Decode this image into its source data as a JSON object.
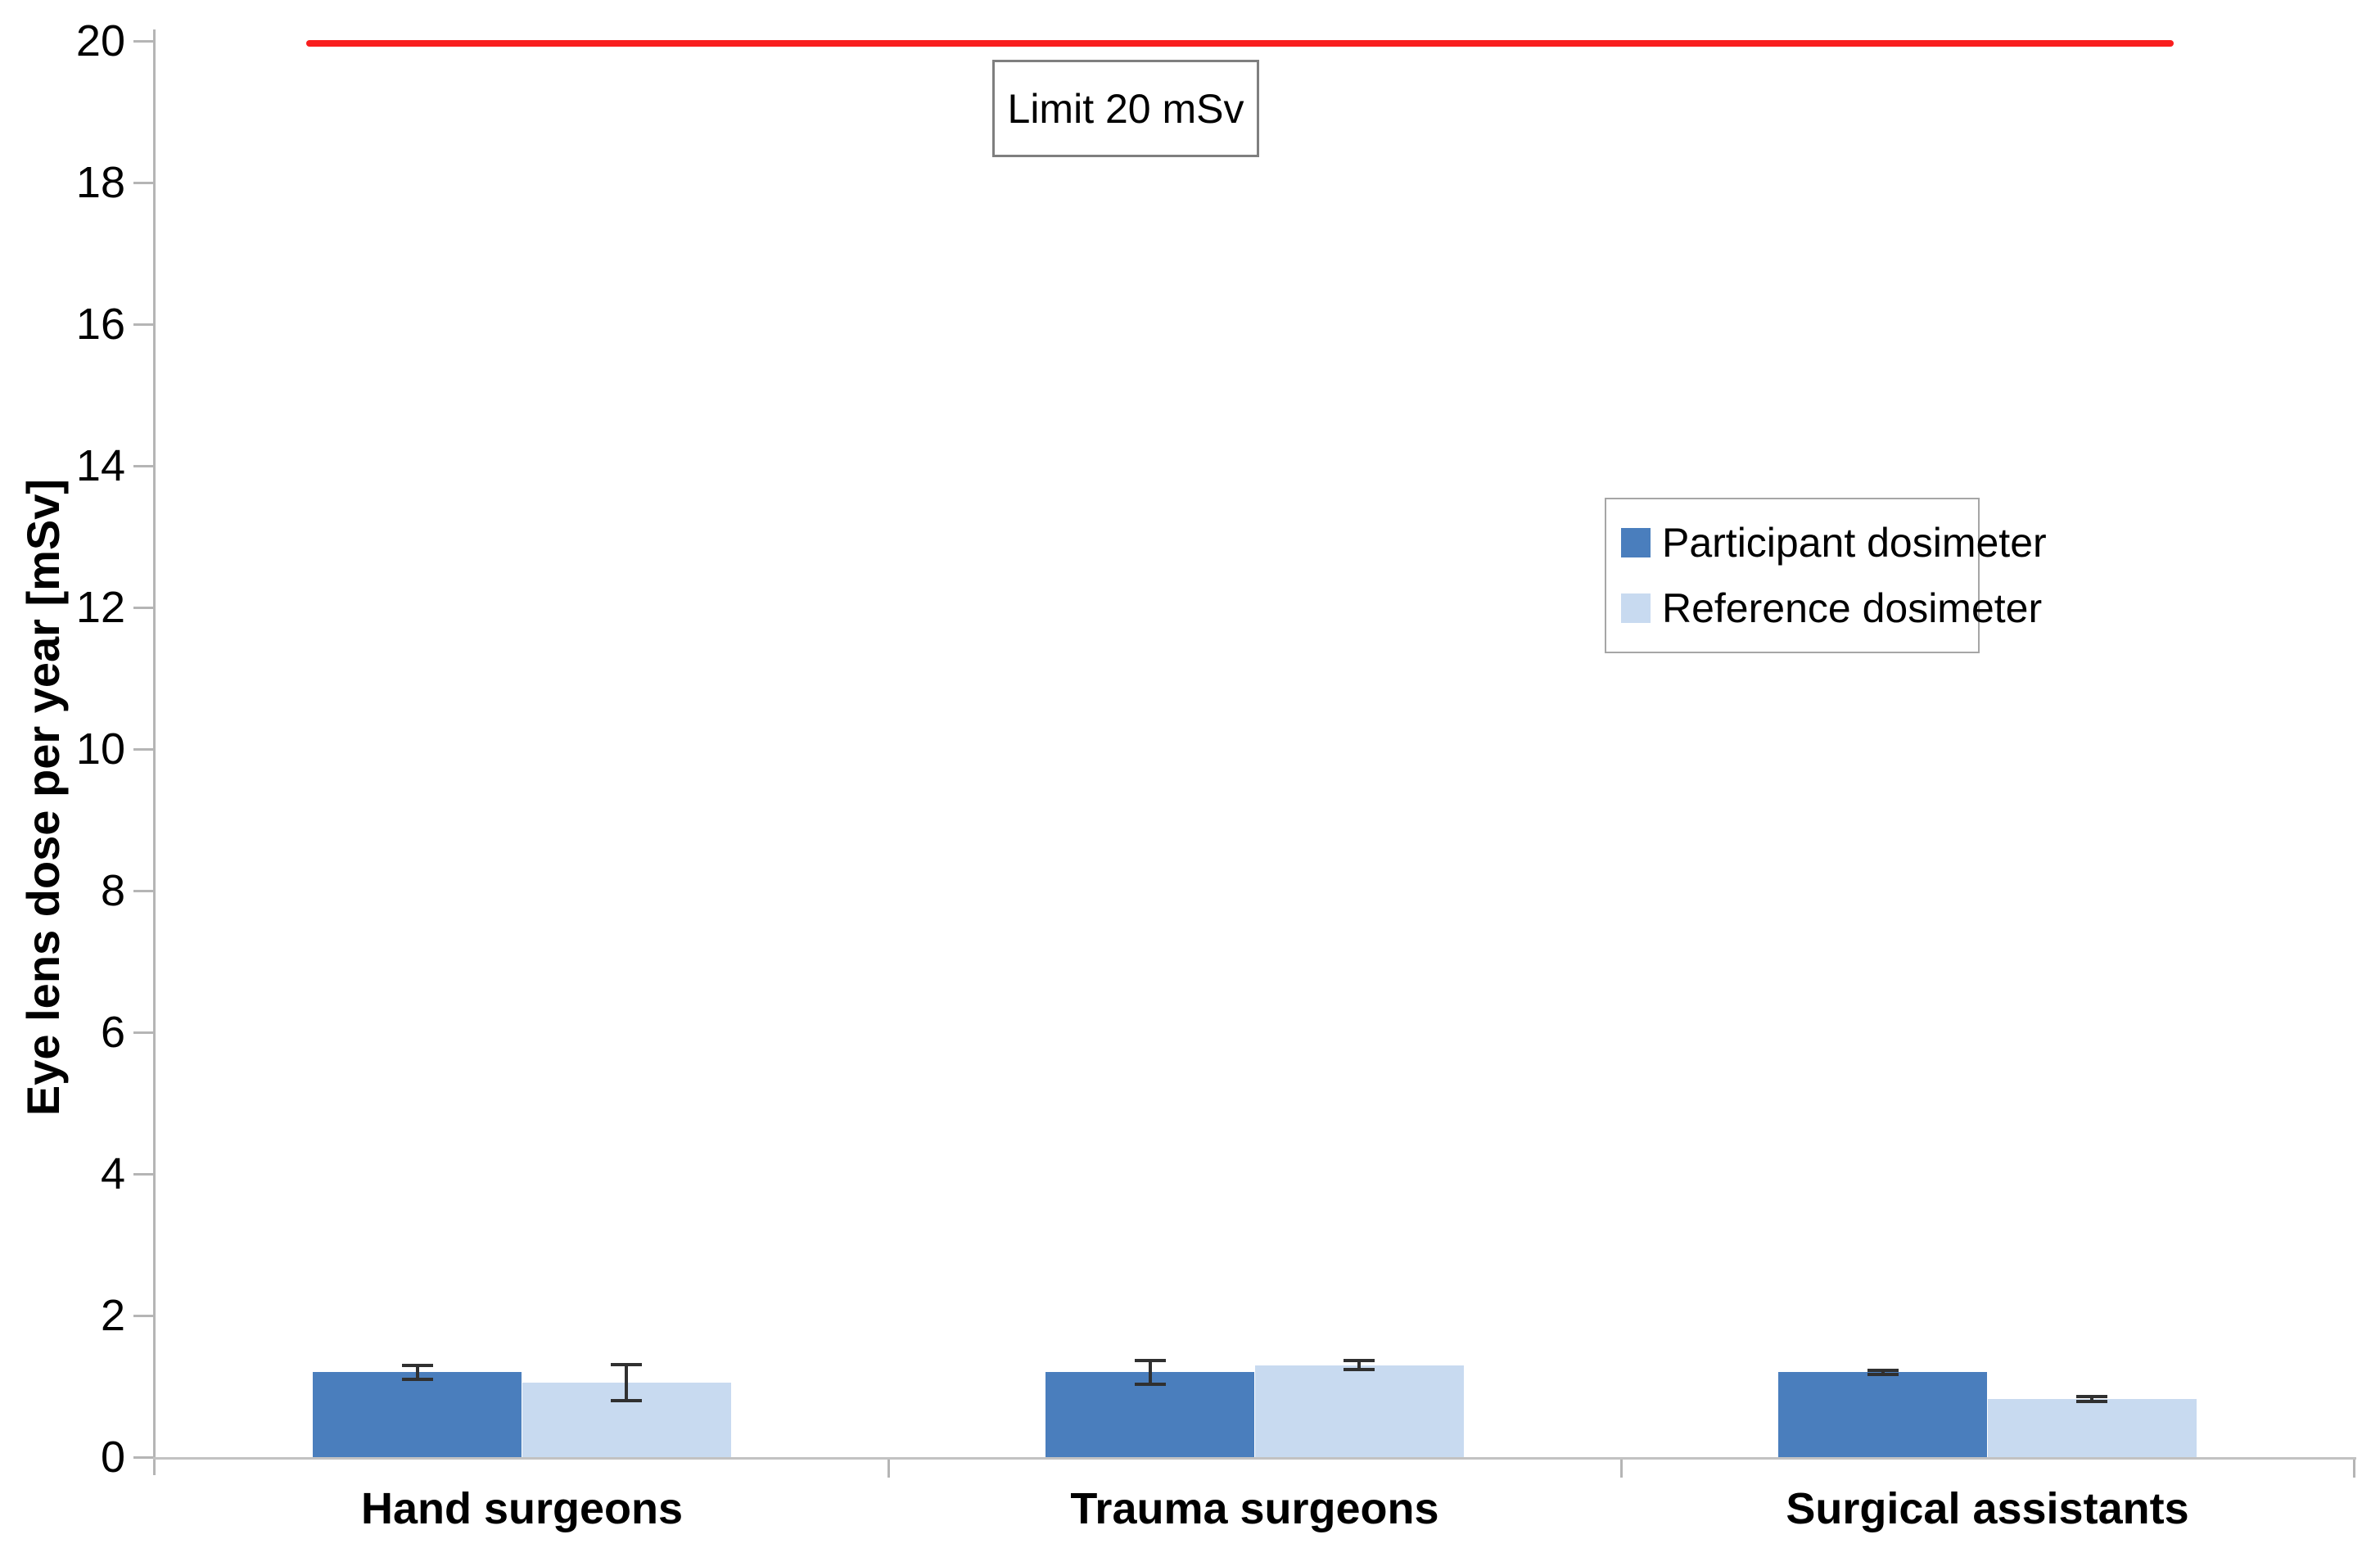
{
  "chart_data": {
    "type": "bar",
    "title": "",
    "xlabel": "",
    "ylabel": "Eye lens dose per year [mSv]",
    "ylim": [
      0,
      20
    ],
    "yticks": [
      0,
      2,
      4,
      6,
      8,
      10,
      12,
      14,
      16,
      18,
      20
    ],
    "grid": false,
    "legend_position": "middle-right",
    "categories": [
      "Hand surgeons",
      "Trauma surgeons",
      "Surgical assistants"
    ],
    "series": [
      {
        "name": "Participant dosimeter",
        "color": "#4a7ebd",
        "values": [
          1.2,
          1.2,
          1.2
        ],
        "errors": [
          0.12,
          0.19,
          0.05
        ]
      },
      {
        "name": "Reference dosimeter",
        "color": "#c8daf0",
        "values": [
          1.05,
          1.3,
          0.82
        ],
        "errors": [
          0.28,
          0.09,
          0.06
        ]
      }
    ],
    "limit_line": {
      "label": "Limit 20 mSv",
      "value": 20,
      "color": "#f91e1e"
    },
    "colors": {
      "axis": "#b5b5b5",
      "error_bar": "#303030",
      "text": "#000000"
    }
  }
}
